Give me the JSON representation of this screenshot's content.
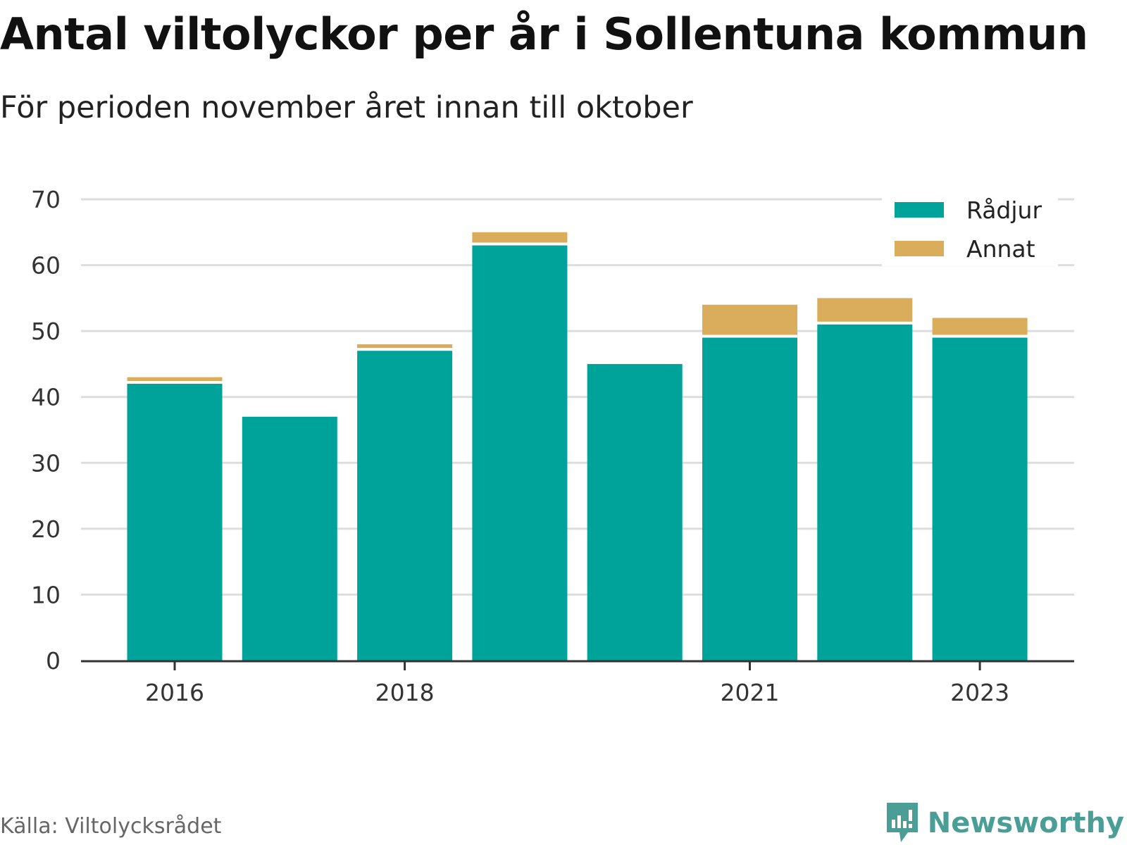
{
  "title": "Antal viltolyckor per år i Sollentuna kommun",
  "subtitle": "För perioden november året innan till oktober",
  "source": "Källa: Viltolycksrådet",
  "brand": "Newsworthy",
  "colors": {
    "radjur": "#00a39a",
    "annat": "#d9ad5b",
    "grid": "#dddddd",
    "axis": "#333333",
    "brand": "#4a9e96"
  },
  "chart_data": {
    "type": "bar",
    "stacked": true,
    "categories": [
      "2016",
      "2017",
      "2018",
      "2019",
      "2020",
      "2021",
      "2022",
      "2023"
    ],
    "xtick_labels": [
      "2016",
      "",
      "2018",
      "",
      "",
      "2021",
      "",
      "2023"
    ],
    "series": [
      {
        "name": "Rådjur",
        "color": "#00a39a",
        "values": [
          42,
          37,
          47,
          63,
          45,
          49,
          51,
          49
        ]
      },
      {
        "name": "Annat",
        "color": "#d9ad5b",
        "values": [
          1,
          0,
          1,
          2,
          0,
          5,
          4,
          3
        ]
      }
    ],
    "yticks": [
      "0",
      "10",
      "20",
      "30",
      "40",
      "50",
      "60",
      "70"
    ],
    "ylim": [
      0,
      70
    ],
    "grid": true,
    "legend_position": "top-right"
  }
}
